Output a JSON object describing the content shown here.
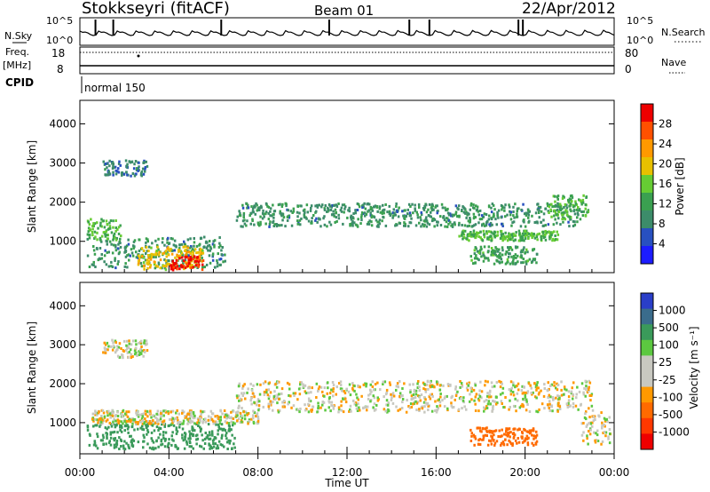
{
  "header": {
    "station": "Stokkseyri (fitACF)",
    "beam": "Beam 01",
    "date": "22/Apr/2012"
  },
  "top_panels": {
    "nsky_label": "N.Sky",
    "nsky_ticks": [
      "10^5",
      "10^0"
    ],
    "nsearch_label": "N.Search",
    "nsearch_ticks": [
      "10^5",
      "10^0"
    ],
    "freq_label": "Freq.",
    "freq_unit": "[MHz]",
    "freq_ticks": [
      "18",
      "8"
    ],
    "nave_label": "Nave",
    "nave_ticks": [
      "80",
      "0"
    ],
    "cpid_label": "CPID",
    "cpid_value": "normal 150"
  },
  "x_axis": {
    "label": "Time UT",
    "ticks": [
      "00:00",
      "04:00",
      "08:00",
      "12:00",
      "16:00",
      "20:00",
      "00:00"
    ],
    "range_hours": [
      0,
      24
    ]
  },
  "power_panel": {
    "ylabel": "Slant Range [km]",
    "yticks": [
      "4000",
      "3000",
      "2000",
      "1000"
    ],
    "ylim": [
      200,
      4600
    ],
    "colorbar_label": "Power [dB]",
    "colorbar_ticks": [
      "28",
      "24",
      "20",
      "16",
      "12",
      "8",
      "4"
    ],
    "colorbar_colors": [
      "#ee0000",
      "#ff5000",
      "#ff9900",
      "#e8c000",
      "#66cc33",
      "#3aa050",
      "#3c8c6a",
      "#2850c0",
      "#1c1cff"
    ]
  },
  "velocity_panel": {
    "ylabel": "Slant Range [km]",
    "yticks": [
      "4000",
      "3000",
      "2000",
      "1000"
    ],
    "ylim": [
      200,
      4600
    ],
    "colorbar_label": "Velocity [m s⁻¹]",
    "colorbar_ticks": [
      "1000",
      "500",
      "100",
      "25",
      "-25",
      "-100",
      "-500",
      "-1000"
    ],
    "colorbar_colors": [
      "#2a3ec8",
      "#3a6c8c",
      "#3a9a5a",
      "#5cc840",
      "#c8c8c0",
      "#c8c8c0",
      "#ff9900",
      "#ff6a00",
      "#ff3800",
      "#ee0000"
    ]
  },
  "chart_data": [
    {
      "type": "heatmap",
      "title": "Power [dB]",
      "xlabel": "Time UT",
      "ylabel": "Slant Range [km]",
      "x_range": [
        0,
        24
      ],
      "ylim": [
        200,
        4600
      ],
      "regions": [
        {
          "t0": 0.3,
          "t1": 6.5,
          "r0": 350,
          "r1": 1150,
          "dB": 8
        },
        {
          "t0": 2.5,
          "t1": 5.5,
          "r0": 300,
          "r1": 900,
          "dB": 18
        },
        {
          "t0": 4.0,
          "t1": 5.5,
          "r0": 300,
          "r1": 650,
          "dB": 28
        },
        {
          "t0": 0.3,
          "t1": 1.8,
          "r0": 1050,
          "r1": 1600,
          "dB": 12
        },
        {
          "t0": 7.0,
          "t1": 22.5,
          "r0": 1400,
          "r1": 2000,
          "dB": 8
        },
        {
          "t0": 17.5,
          "t1": 20.5,
          "r0": 450,
          "r1": 900,
          "dB": 10
        },
        {
          "t0": 17.0,
          "t1": 21.5,
          "r0": 1050,
          "r1": 1300,
          "dB": 12
        },
        {
          "t0": 21.0,
          "t1": 22.8,
          "r0": 1600,
          "r1": 2200,
          "dB": 12
        },
        {
          "t0": 1.0,
          "t1": 3.0,
          "r0": 2700,
          "r1": 3100,
          "dB": 6
        }
      ]
    },
    {
      "type": "heatmap",
      "title": "Velocity [m s⁻¹]",
      "xlabel": "Time UT",
      "ylabel": "Slant Range [km]",
      "x_range": [
        0,
        24
      ],
      "ylim": [
        200,
        4600
      ],
      "regions": [
        {
          "t0": 0.3,
          "t1": 7.0,
          "r0": 350,
          "r1": 1000,
          "v": 200
        },
        {
          "t0": 0.5,
          "t1": 8.0,
          "r0": 1000,
          "r1": 1350,
          "v": 0
        },
        {
          "t0": 7.0,
          "t1": 23.0,
          "r0": 1300,
          "r1": 2100,
          "v": 0
        },
        {
          "t0": 1.0,
          "t1": 3.0,
          "r0": 2700,
          "r1": 3150,
          "v": 0
        },
        {
          "t0": 17.5,
          "t1": 20.5,
          "r0": 450,
          "r1": 900,
          "v": -400
        },
        {
          "t0": 22.5,
          "t1": 23.8,
          "r0": 450,
          "r1": 1300,
          "v": 0
        }
      ]
    }
  ]
}
